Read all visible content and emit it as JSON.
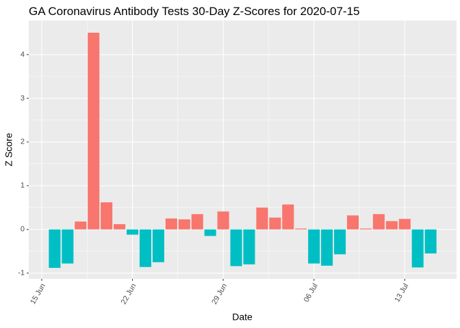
{
  "chart_data": {
    "type": "bar",
    "title": "GA Coronavirus Antibody Tests 30-Day Z-Scores for 2020-07-15",
    "x_label": "Date",
    "y_label": "Z Score",
    "x": [
      "16 Jun",
      "17 Jun",
      "18 Jun",
      "19 Jun",
      "20 Jun",
      "21 Jun",
      "22 Jun",
      "23 Jun",
      "24 Jun",
      "25 Jun",
      "26 Jun",
      "27 Jun",
      "28 Jun",
      "29 Jun",
      "30 Jun",
      "01 Jul",
      "02 Jul",
      "03 Jul",
      "04 Jul",
      "05 Jul",
      "06 Jul",
      "07 Jul",
      "08 Jul",
      "09 Jul",
      "10 Jul",
      "11 Jul",
      "12 Jul",
      "13 Jul",
      "14 Jul",
      "15 Jul"
    ],
    "values": [
      -0.88,
      -0.78,
      0.18,
      4.5,
      0.62,
      0.12,
      -0.12,
      -0.86,
      -0.75,
      0.25,
      0.23,
      0.35,
      -0.15,
      0.41,
      -0.84,
      -0.8,
      0.5,
      0.27,
      0.57,
      0.02,
      -0.78,
      -0.83,
      -0.57,
      0.32,
      0.02,
      0.35,
      0.19,
      0.24,
      -0.87,
      -0.55
    ],
    "positive_color": "#F8766D",
    "negative_color": "#00BFC4",
    "xlim": [
      "14 Jun",
      "17 Jul"
    ],
    "xticks": [
      "15 Jun",
      "22 Jun",
      "29 Jun",
      "06 Jul",
      "13 Jul"
    ],
    "ylim": [
      -1.13,
      4.78
    ],
    "yticks": [
      -1,
      0,
      1,
      2,
      3,
      4
    ],
    "grid": true
  }
}
